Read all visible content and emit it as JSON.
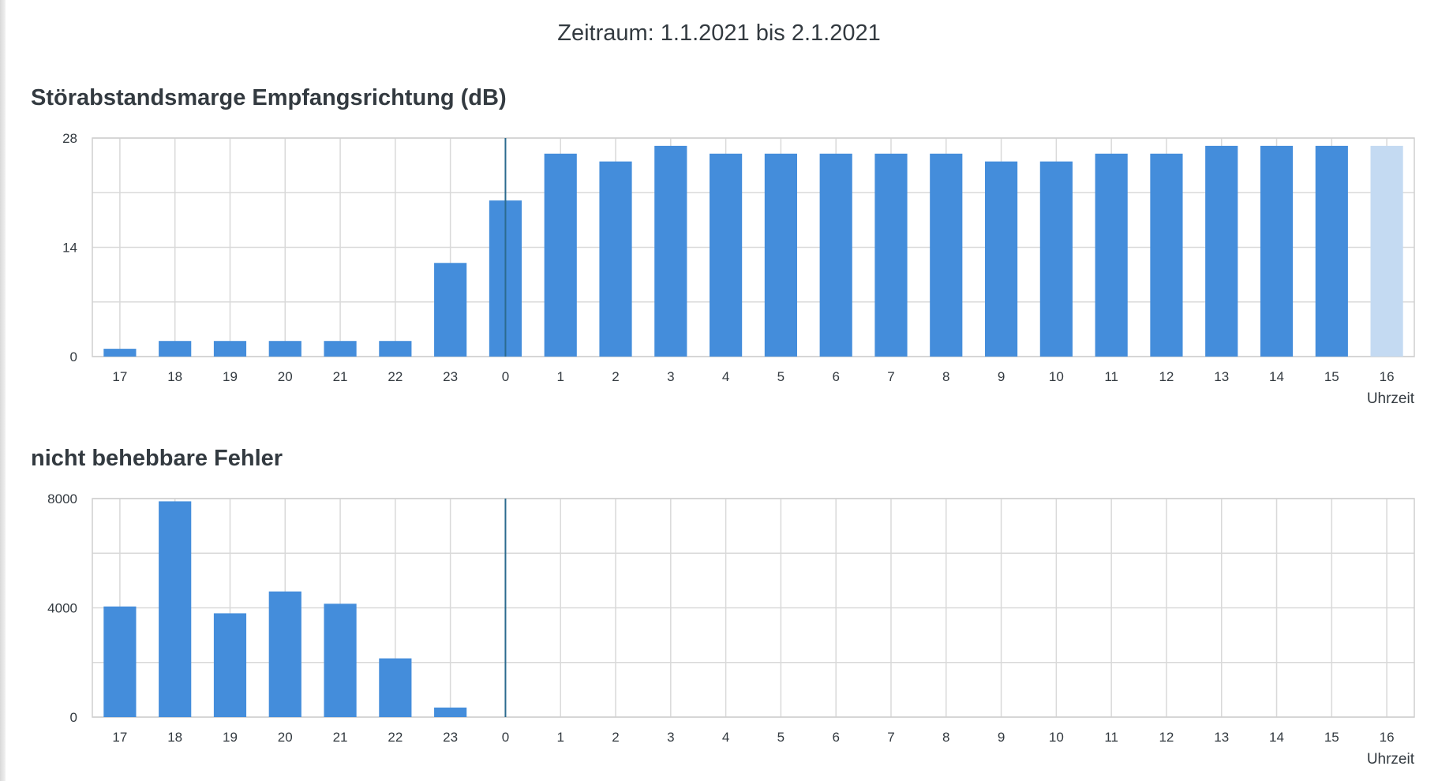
{
  "header": {
    "period": "Zeitraum: 1.1.2021 bis 2.1.2021"
  },
  "colors": {
    "bar": "#448ddb",
    "bar_pending": "#c4daf2",
    "grid": "#d9d9d9",
    "now_line": "#2c6b8f"
  },
  "chart_data": [
    {
      "type": "bar",
      "title": "Störabstandsmarge Empfangsrichtung (dB)",
      "xlabel": "Uhrzeit",
      "ylabel": "",
      "categories": [
        "17",
        "18",
        "19",
        "20",
        "21",
        "22",
        "23",
        "0",
        "1",
        "2",
        "3",
        "4",
        "5",
        "6",
        "7",
        "8",
        "9",
        "10",
        "11",
        "12",
        "13",
        "14",
        "15",
        "16"
      ],
      "values": [
        1,
        2,
        2,
        2,
        2,
        2,
        12,
        20,
        26,
        25,
        27,
        26,
        26,
        26,
        26,
        26,
        25,
        25,
        26,
        26,
        27,
        27,
        27,
        27
      ],
      "pending_categories": [
        "16"
      ],
      "ylim": [
        0,
        28
      ],
      "yticks": [
        "0",
        "14",
        "28"
      ],
      "now_marker": "0",
      "grid": true
    },
    {
      "type": "bar",
      "title": "nicht behebbare Fehler",
      "xlabel": "Uhrzeit",
      "ylabel": "",
      "categories": [
        "17",
        "18",
        "19",
        "20",
        "21",
        "22",
        "23",
        "0",
        "1",
        "2",
        "3",
        "4",
        "5",
        "6",
        "7",
        "8",
        "9",
        "10",
        "11",
        "12",
        "13",
        "14",
        "15",
        "16"
      ],
      "values": [
        4050,
        7900,
        3800,
        4600,
        4150,
        2150,
        350,
        0,
        0,
        0,
        0,
        0,
        0,
        0,
        0,
        0,
        0,
        0,
        0,
        0,
        0,
        0,
        0,
        0
      ],
      "pending_categories": [],
      "ylim": [
        0,
        8000
      ],
      "yticks": [
        "0",
        "4000",
        "8000"
      ],
      "now_marker": "0",
      "grid": true
    }
  ]
}
